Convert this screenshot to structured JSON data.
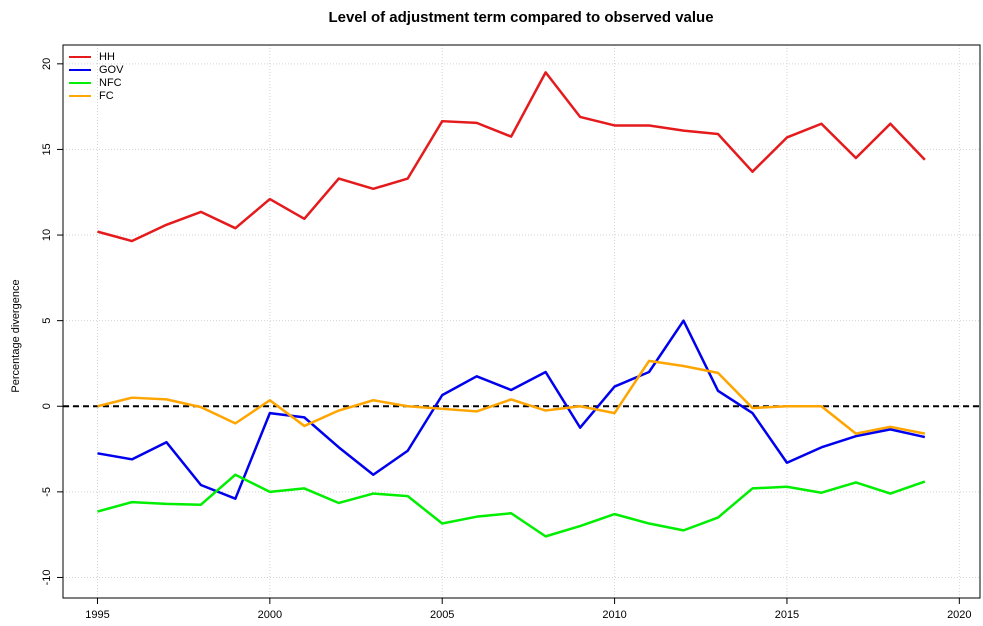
{
  "chart_data": {
    "type": "line",
    "title": "Level of adjustment term compared to observed value",
    "y_label": "Percentage divergence",
    "x": [
      1995,
      1996,
      1997,
      1998,
      1999,
      2000,
      2001,
      2002,
      2003,
      2004,
      2005,
      2006,
      2007,
      2008,
      2009,
      2010,
      2011,
      2012,
      2013,
      2014,
      2015,
      2016,
      2017,
      2018,
      2019
    ],
    "series": [
      {
        "name": "HH",
        "color": "#e41a1c",
        "values": [
          10.2,
          9.65,
          10.6,
          11.35,
          10.4,
          12.1,
          10.95,
          13.3,
          12.7,
          13.3,
          16.65,
          16.55,
          15.75,
          19.5,
          16.9,
          16.4,
          16.4,
          16.1,
          15.9,
          13.7,
          15.7,
          16.5,
          14.5,
          16.5,
          14.4
        ]
      },
      {
        "name": "GOV",
        "color": "#0000ee",
        "values": [
          -2.75,
          -3.1,
          -2.1,
          -4.6,
          -5.4,
          -0.4,
          -0.65,
          -2.4,
          -4.0,
          -2.6,
          0.65,
          1.75,
          0.95,
          2.0,
          -1.25,
          1.15,
          2.0,
          5.0,
          0.9,
          -0.4,
          -3.3,
          -2.4,
          -1.75,
          -1.35,
          -1.8
        ]
      },
      {
        "name": "NFC",
        "color": "#00ee00",
        "values": [
          -6.15,
          -5.6,
          -5.7,
          -5.75,
          -4.0,
          -5.0,
          -4.8,
          -5.65,
          -5.1,
          -5.25,
          -6.85,
          -6.45,
          -6.25,
          -7.6,
          -7.0,
          -6.3,
          -6.85,
          -7.25,
          -6.5,
          -4.8,
          -4.7,
          -5.05,
          -4.45,
          -5.1,
          -4.4
        ]
      },
      {
        "name": "FC",
        "color": "#ffa500",
        "values": [
          0,
          0.5,
          0.4,
          -0.05,
          -1.0,
          0.35,
          -1.15,
          -0.25,
          0.35,
          0,
          -0.15,
          -0.3,
          0.4,
          -0.25,
          0,
          -0.4,
          2.65,
          2.35,
          1.95,
          -0.1,
          0,
          0,
          -1.6,
          -1.2,
          -1.6
        ]
      }
    ],
    "reference_line": 0,
    "xlim": [
      1994,
      2020.6
    ],
    "xticks": [
      1995,
      2000,
      2005,
      2010,
      2015,
      2020
    ],
    "ylim": [
      -11.2,
      21.1
    ],
    "yticks": [
      -10,
      -5,
      0,
      5,
      10,
      15,
      20
    ],
    "grid": true,
    "legend": "top-left"
  }
}
